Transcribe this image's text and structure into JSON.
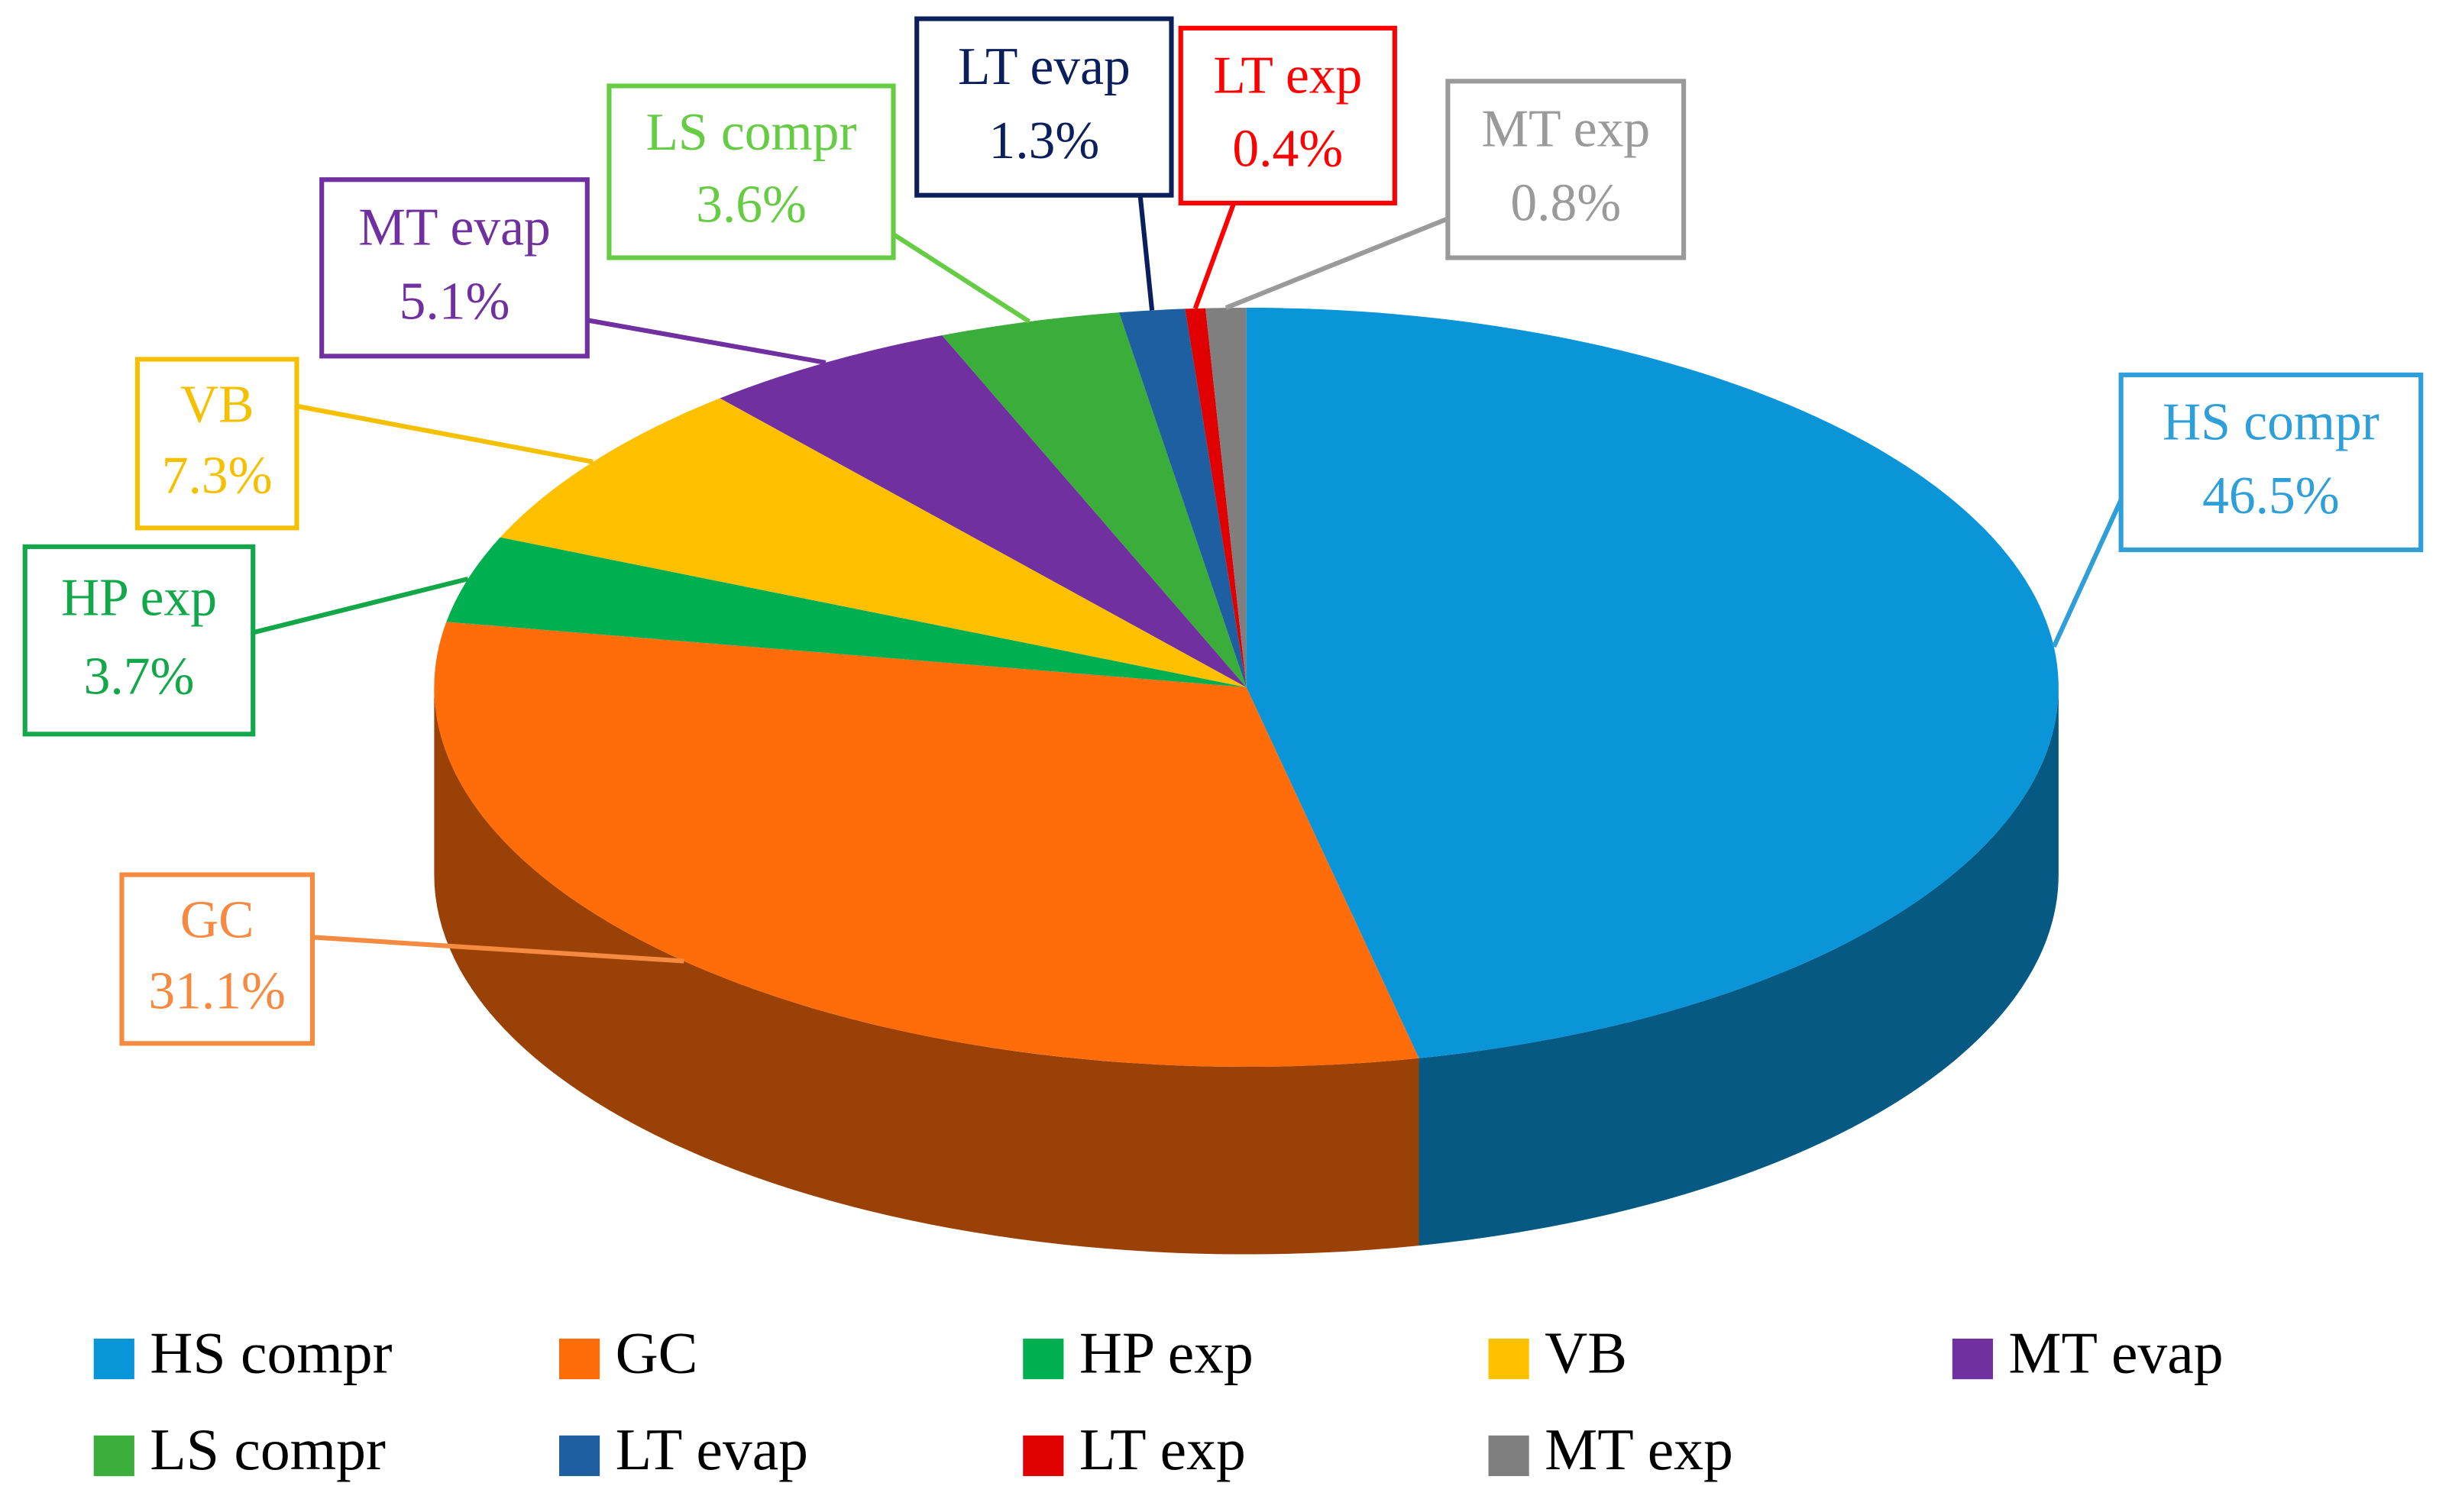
{
  "chart_data": {
    "type": "pie",
    "categories": [
      "HS compr",
      "GC",
      "HP exp",
      "VB",
      "MT evap",
      "LS compr",
      "LT evap",
      "LT exp",
      "MT exp"
    ],
    "values": [
      46.5,
      31.1,
      3.7,
      7.3,
      5.1,
      3.6,
      1.3,
      0.4,
      0.8
    ],
    "value_labels": [
      "46.5%",
      "31.1%",
      "3.7%",
      "7.3%",
      "5.1%",
      "3.6%",
      "1.3%",
      "0.4%",
      "0.8%"
    ],
    "colors": [
      "#0a95d9",
      "#ff6d0b",
      "#00b050",
      "#ffc000",
      "#7030a0",
      "#3aad3a",
      "#1d5fa0",
      "#e00000",
      "#7f7f7f"
    ],
    "label_colors": [
      "#2e9fd8",
      "#f58a40",
      "#12a84a",
      "#f5c000",
      "#7030a0",
      "#66cc44",
      "#0b1f5c",
      "#ff0000",
      "#9a9a9a"
    ],
    "legend": "bottom"
  }
}
